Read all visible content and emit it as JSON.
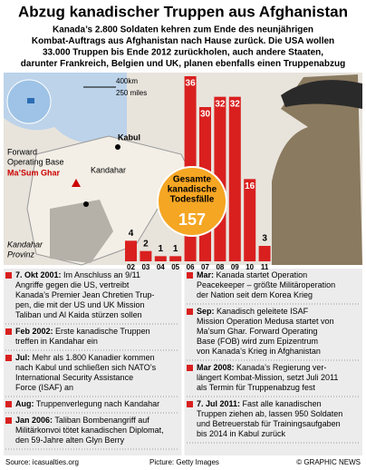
{
  "header": {
    "title": "Abzug kanadischer Truppen aus Afghanistan",
    "subtitle": [
      "Kanada’s 2.800 Soldaten kehren zum Ende des neunjährigen",
      "Kombat-Auftrags aus Afghanistan nach Hause zurück. Die USA wollen",
      "33.000 Truppen bis Ende 2012 zurückholen, auch andere Staaten,",
      "darunter Frankreich, Belgien und UK, planen ebenfalls einen Truppenabzug"
    ]
  },
  "map": {
    "scale_km": "400km",
    "scale_mi": "250 miles",
    "base": [
      "Forward",
      "Operating Base"
    ],
    "base_name": "Ma’Sum Ghar",
    "kabul": "Kabul",
    "kandahar": "Kandahar",
    "province": [
      "Kandahar",
      "Provinz"
    ]
  },
  "chart_data": {
    "type": "bar",
    "categories": [
      "02",
      "03",
      "04",
      "05",
      "06",
      "07",
      "08",
      "09",
      "10",
      "11"
    ],
    "values": [
      4,
      2,
      1,
      1,
      36,
      30,
      32,
      32,
      16,
      3
    ],
    "color": "#d9201f",
    "total_label": [
      "Gesamte",
      "kanadische",
      "Todesfälle"
    ],
    "total": 157
  },
  "timeline": {
    "left": [
      {
        "date": "7. Okt 2001:",
        "lines": [
          " Im Anschluss an 9/11",
          "Angriffe gegen die US, vertreibt",
          "Kanada’s Premier Jean Chretien Trup-",
          "pen, die mit der US und UK Mission",
          "Taliban und Al Kaida stürzen sollen"
        ]
      },
      {
        "date": "Feb 2002:",
        "lines": [
          " Erste kanadische Truppen",
          "treffen in Kandahar ein"
        ]
      },
      {
        "date": "Jul:",
        "lines": [
          " Mehr als 1.800 Kanadier kommen",
          "nach Kabul und schließen sich NATO’s",
          "International Security Assistance",
          "Force (ISAF) an"
        ]
      },
      {
        "date": "Aug:",
        "lines": [
          " Truppenverlegung nach Kandahar"
        ]
      },
      {
        "date": "Jan 2006:",
        "lines": [
          " Taliban Bombenangriff auf",
          "Militärkonvoi tötet kanadischen Diplomat,",
          "den 59-Jahre alten Glyn Berry"
        ]
      }
    ],
    "right": [
      {
        "date": "Mar:",
        "lines": [
          " Kanada startet Operation",
          "Peacekeeper – größte Militäroperation",
          "der Nation seit dem Korea Krieg"
        ]
      },
      {
        "date": "Sep:",
        "lines": [
          " Kanadisch geleitete ISAF",
          "Mission Operation Medusa startet von",
          "Ma’sum Ghar. Forward Operating",
          "Base (FOB) wird zum Epizentrum",
          "von Kanada’s Krieg in Afghanistan"
        ]
      },
      {
        "date": "Mar 2008:",
        "lines": [
          " Kanada’s Regierung ver-",
          "längert Kombat-Mission, setzt Juli 2011",
          "als Termin für Truppenabzug fest"
        ]
      },
      {
        "date": "7. Jul 2011:",
        "lines": [
          " Fast alle kanadischen",
          "Truppen ziehen ab, lassen 950 Soldaten",
          "und Betreuerstab für Trainingsaufgaben",
          "bis 2014 in Kabul zurück"
        ]
      }
    ]
  },
  "footer": {
    "source": "Source: icasualties.org",
    "picture": "Picture: Getty Images",
    "credit": "© GRAPHIC NEWS"
  }
}
